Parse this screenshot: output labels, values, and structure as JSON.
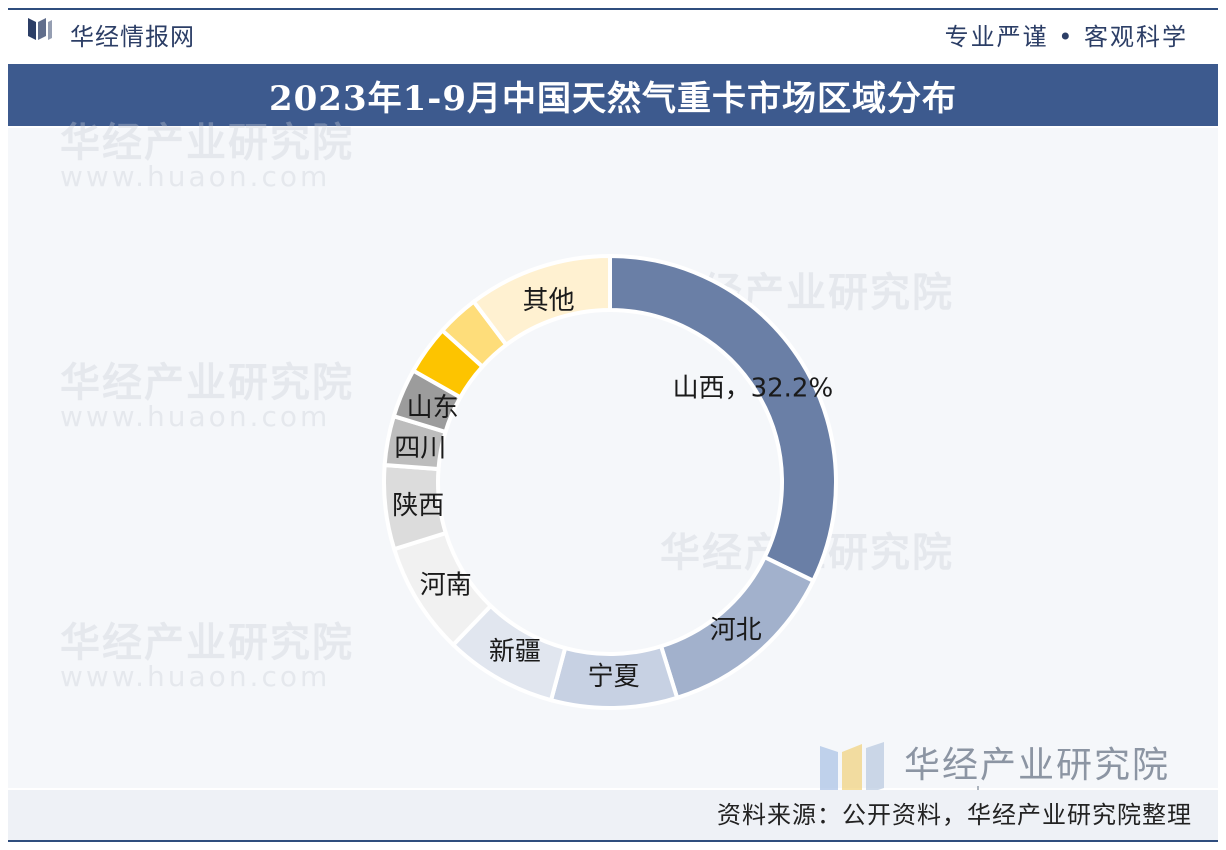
{
  "header": {
    "brand": "华经情报网",
    "slogan": "专业严谨 • 客观科学"
  },
  "title": "2023年1-9月中国天然气重卡市场区域分布",
  "watermark": {
    "brand": "华经产业研究院",
    "url": "www.huaon.com",
    "ghost_text": "华经产业研究院",
    "ghost_url": "www.huaon.com"
  },
  "footer": {
    "source": "资料来源：公开资料，华经产业研究院整理"
  },
  "colors": {
    "title_bar": "#3d5a8e",
    "accent": "#2f4d7e"
  },
  "chart_data": {
    "type": "pie",
    "style": "donut",
    "title": "2023年1-9月中国天然气重卡市场区域分布",
    "unit": "%",
    "slices": [
      {
        "label": "山西",
        "value": 32.2,
        "display": "山西，32.2%",
        "color": "#6a7fa6"
      },
      {
        "label": "河北",
        "value": 13.0,
        "display": "河北",
        "color": "#a2b1cc"
      },
      {
        "label": "宁夏",
        "value": 9.0,
        "display": "宁夏",
        "color": "#c7d1e3"
      },
      {
        "label": "新疆",
        "value": 8.0,
        "display": "新疆",
        "color": "#e1e6ef"
      },
      {
        "label": "河南",
        "value": 8.0,
        "display": "河南",
        "color": "#f1f1f1"
      },
      {
        "label": "陕西",
        "value": 6.0,
        "display": "陕西",
        "color": "#dcdcdc"
      },
      {
        "label": "四川",
        "value": 3.5,
        "display": "四川",
        "color": "#bdbdbd"
      },
      {
        "label": "山东",
        "value": 3.5,
        "display": "山东",
        "color": "#9c9c9c"
      },
      {
        "label": "",
        "value": 3.5,
        "display": "",
        "color": "#fdc400"
      },
      {
        "label": "",
        "value": 3.0,
        "display": "",
        "color": "#fedd7a"
      },
      {
        "label": "其他",
        "value": 10.3,
        "display": "其他",
        "color": "#fff1d1"
      }
    ]
  }
}
